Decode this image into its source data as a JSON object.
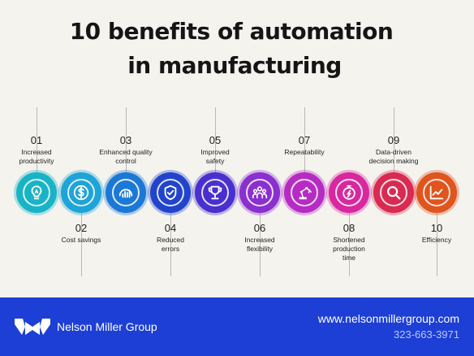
{
  "title": {
    "line1": "10 benefits of automation",
    "line2": "in manufacturing"
  },
  "benefits": [
    {
      "number": "01",
      "label_lines": [
        "Increased",
        "productivity"
      ],
      "color": "#19b3c6",
      "icon": "lightbulb-icon"
    },
    {
      "number": "02",
      "label_lines": [
        "Cost savings"
      ],
      "color": "#1ea4d8",
      "icon": "dollar-coin-icon"
    },
    {
      "number": "03",
      "label_lines": [
        "Enhanced quality",
        "control"
      ],
      "color": "#1c78d6",
      "icon": "quality-gauge-icon"
    },
    {
      "number": "04",
      "label_lines": [
        "Reduced",
        "errors"
      ],
      "color": "#2244cc",
      "icon": "shield-check-icon"
    },
    {
      "number": "05",
      "label_lines": [
        "Improved",
        "safety"
      ],
      "color": "#4a2fcf",
      "icon": "trophy-icon"
    },
    {
      "number": "06",
      "label_lines": [
        "Increased",
        "flexibility"
      ],
      "color": "#8a2fd0",
      "icon": "team-people-icon"
    },
    {
      "number": "07",
      "label_lines": [
        "Repeatability"
      ],
      "color": "#b62bc4",
      "icon": "robot-arm-icon"
    },
    {
      "number": "08",
      "label_lines": [
        "Shortened",
        "production",
        "time"
      ],
      "color": "#d8289f",
      "icon": "stopwatch-icon"
    },
    {
      "number": "09",
      "label_lines": [
        "Data-driven",
        "decision making"
      ],
      "color": "#d92a52",
      "icon": "magnifier-icon"
    },
    {
      "number": "10",
      "label_lines": [
        "Efficiency"
      ],
      "color": "#e0541e",
      "icon": "trend-chart-icon"
    }
  ],
  "footer": {
    "brand": "Nelson Miller Group",
    "url": "www.nelsonmillergroup.com",
    "phone": "323-663-3971",
    "background": "#1d3fd6"
  }
}
